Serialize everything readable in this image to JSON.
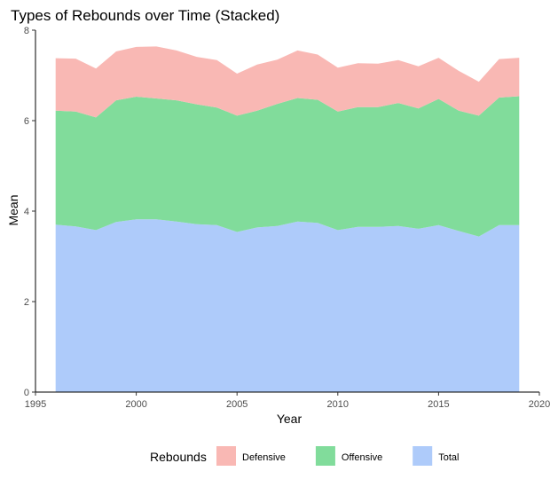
{
  "chart_data": {
    "type": "area",
    "stacked": true,
    "title": "Types of Rebounds over Time (Stacked)",
    "xlabel": "Year",
    "ylabel": "Mean",
    "xlim": [
      1995,
      2020
    ],
    "ylim": [
      0,
      8
    ],
    "x_ticks": [
      1995,
      2000,
      2005,
      2010,
      2015,
      2020
    ],
    "y_ticks": [
      0,
      2,
      4,
      6,
      8
    ],
    "grid": false,
    "legend": {
      "title": "Rebounds",
      "position": "bottom"
    },
    "x": [
      1996,
      1997,
      1998,
      1999,
      2000,
      2001,
      2002,
      2003,
      2004,
      2005,
      2006,
      2007,
      2008,
      2009,
      2010,
      2011,
      2012,
      2013,
      2014,
      2015,
      2016,
      2017,
      2018,
      2019
    ],
    "series": [
      {
        "name": "Total",
        "color": "#aecbfa",
        "values": [
          3.7,
          3.66,
          3.58,
          3.76,
          3.82,
          3.82,
          3.77,
          3.71,
          3.69,
          3.54,
          3.64,
          3.67,
          3.77,
          3.74,
          3.58,
          3.65,
          3.65,
          3.67,
          3.61,
          3.69,
          3.56,
          3.44,
          3.69,
          3.69
        ]
      },
      {
        "name": "Offensive",
        "color": "#81dc9b",
        "values": [
          2.52,
          2.54,
          2.49,
          2.69,
          2.71,
          2.67,
          2.68,
          2.65,
          2.6,
          2.57,
          2.58,
          2.7,
          2.73,
          2.72,
          2.62,
          2.65,
          2.65,
          2.72,
          2.66,
          2.79,
          2.66,
          2.67,
          2.82,
          2.85
        ]
      },
      {
        "name": "Defensive",
        "color": "#f9b8b4",
        "values": [
          1.16,
          1.17,
          1.08,
          1.08,
          1.1,
          1.15,
          1.1,
          1.05,
          1.05,
          0.93,
          1.02,
          0.98,
          1.05,
          1.0,
          0.97,
          0.97,
          0.96,
          0.95,
          0.93,
          0.91,
          0.88,
          0.75,
          0.85,
          0.85
        ]
      }
    ]
  }
}
